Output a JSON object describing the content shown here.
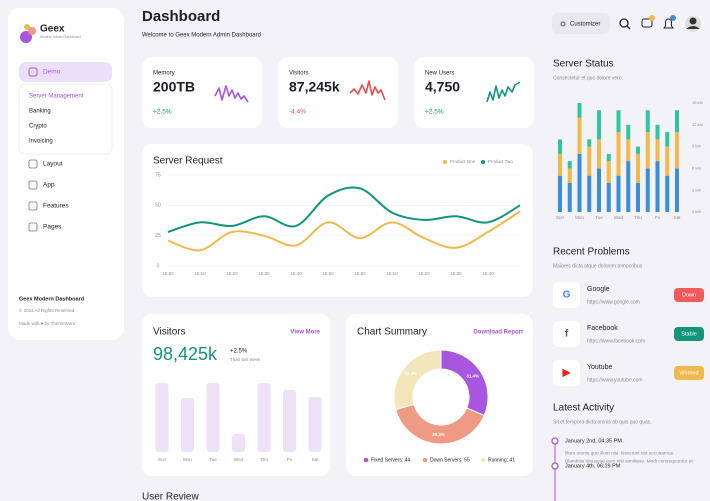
{
  "sidebar": {
    "brand": "Geex",
    "tagline": "Modern Admin Dashboard",
    "active": "Demo",
    "submenu": [
      "Server Management",
      "Banking",
      "Crypto",
      "Invoicing"
    ],
    "menu": [
      "Layout",
      "App",
      "Features",
      "Pages"
    ],
    "footer": {
      "title": "Geex Modern Dashboard",
      "copyright": "© 2024 All Rights Reserved",
      "credit": "Made with ♥ by ThemeWant"
    }
  },
  "header": {
    "title": "Dashboard",
    "subtitle": "Welcome to Geex Modern Admin Dashboard",
    "customizer": "Customizer"
  },
  "stats": [
    {
      "label": "Memory",
      "value": "200TB",
      "change": "+2.5%"
    },
    {
      "label": "Visitors",
      "value": "87,245k",
      "change": "-4.4%"
    },
    {
      "label": "New Users",
      "value": "4,750",
      "change": "+2.5%"
    }
  ],
  "visitors_card": {
    "link": "View More",
    "total": "98,425k",
    "change": "+2.5%",
    "period": "Than last week"
  },
  "summary_card": {
    "link": "Download Report"
  },
  "server_status": {
    "subtitle": "Consectetur et quo dolore vero."
  },
  "problems": {
    "title": "Recent Problems",
    "subtitle": "Maiores dicta atque dolorem temporibus",
    "items": [
      {
        "name": "Google",
        "url": "https://www.google.com",
        "status": "Down"
      },
      {
        "name": "Facebook",
        "url": "https://www.facebook.com",
        "status": "Stable"
      },
      {
        "name": "Youtube",
        "url": "https://www.youtube.com",
        "status": "Worried"
      }
    ]
  },
  "activity": {
    "title": "Latest Activity",
    "subtitle": "Sit et tempora dicta omnis ab quis quo quas.",
    "items": [
      {
        "date": "January 2nd, 04:35 PM",
        "text": [
          "Illum omnis quo illum nisi. Nesciunt est accusamus.",
          "Blanditiis nisi quae eum nisi similique. Modi consequuntur et"
        ]
      },
      {
        "date": "January 4th, 06:19 PM"
      }
    ]
  },
  "reviews": {
    "title": "User Review"
  },
  "chart_data": [
    {
      "type": "line",
      "title": "Server Request",
      "categories": [
        "16:00",
        "16:10",
        "16:20",
        "16:30",
        "16:40",
        "16:50",
        "16:00",
        "16:10",
        "16:20",
        "16:30",
        "16:40",
        null
      ],
      "series": [
        {
          "name": "Product One",
          "color": "#f2b84b",
          "values": [
            21,
            13,
            28,
            25,
            17,
            36,
            23,
            36,
            23,
            15,
            28,
            45
          ]
        },
        {
          "name": "Product Two",
          "color": "#12957a",
          "values": [
            28,
            36,
            33,
            41,
            33,
            58,
            64,
            44,
            38,
            41,
            36,
            50
          ]
        }
      ],
      "ylim": [
        0,
        75
      ],
      "yticks": [
        0,
        25,
        50,
        75
      ],
      "grid": true
    },
    {
      "type": "bar",
      "title": "Visitors",
      "categories": [
        "Sun",
        "Mon",
        "Tue",
        "Wed",
        "Thu",
        "Fri",
        "Sat"
      ],
      "values": [
        69,
        54,
        69,
        18,
        69,
        62,
        55
      ],
      "color": "#efe1f7"
    },
    {
      "type": "donut",
      "title": "Chart Summary",
      "labels": [
        "Fixed Servers: 44",
        "Down Servers: 55",
        "Running: 41"
      ],
      "values": [
        44,
        55,
        41
      ],
      "percent_labels": [
        "31.4%",
        "39.3%",
        "29.3%"
      ],
      "colors": [
        "#a855e0",
        "#ef9a85",
        "#f3e6bb"
      ]
    },
    {
      "type": "stacked_bar",
      "title": "Server Status",
      "categories": [
        "Sun",
        null,
        "Mon",
        null,
        "Tue",
        null,
        "Wed",
        null,
        "Thu",
        null,
        "Fri",
        null,
        "Sat"
      ],
      "series": [
        {
          "color": "#3b8fd9",
          "values": [
            5,
            4,
            8,
            5,
            6,
            4,
            5,
            7,
            4,
            6,
            7,
            5,
            6
          ]
        },
        {
          "color": "#f2b84b",
          "values": [
            3,
            2,
            5,
            4,
            4,
            3,
            6,
            3,
            4,
            5,
            3,
            4,
            5
          ]
        },
        {
          "color": "#2ec5a0",
          "values": [
            2,
            1,
            2,
            1,
            4,
            1,
            3,
            2,
            1,
            3,
            2,
            2,
            3
          ]
        }
      ],
      "ylim": [
        0,
        15
      ],
      "yticks": [
        {
          "value": 0,
          "label": "0 kM"
        },
        {
          "value": 3,
          "label": "3 kM"
        },
        {
          "value": 6,
          "label": "6 kM"
        },
        {
          "value": 9,
          "label": "9 kM"
        },
        {
          "value": 12,
          "label": "12 kM"
        },
        {
          "value": 15,
          "label": "15 kM"
        }
      ]
    }
  ]
}
